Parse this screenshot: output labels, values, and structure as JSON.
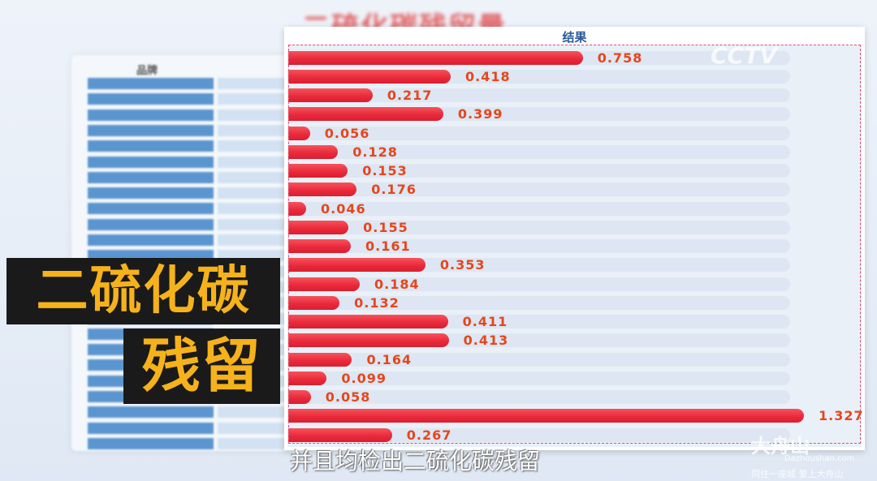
{
  "background": {
    "title": "二硫化碳残留量",
    "table_header": "品牌"
  },
  "chart_data": {
    "type": "bar",
    "orientation": "horizontal",
    "title": "结果",
    "values": [
      0.758,
      0.418,
      0.217,
      0.399,
      0.056,
      0.128,
      0.153,
      0.176,
      0.046,
      0.155,
      0.161,
      0.353,
      0.184,
      0.132,
      0.411,
      0.413,
      0.164,
      0.099,
      0.058,
      1.327,
      0.267
    ],
    "bar_color": "#e8283a",
    "label_color": "#e6461c"
  },
  "overlay": {
    "line1": "二硫化碳",
    "line2": "残留",
    "text_color": "#f6b21b"
  },
  "subtitle": "并且均检出二硫化碳残留",
  "watermarks": {
    "channel_logo": "CCTV",
    "site_name": "大舟山",
    "site_url": "Dazhoushan.com",
    "slogan": "同住一座城 爱上大舟山"
  }
}
